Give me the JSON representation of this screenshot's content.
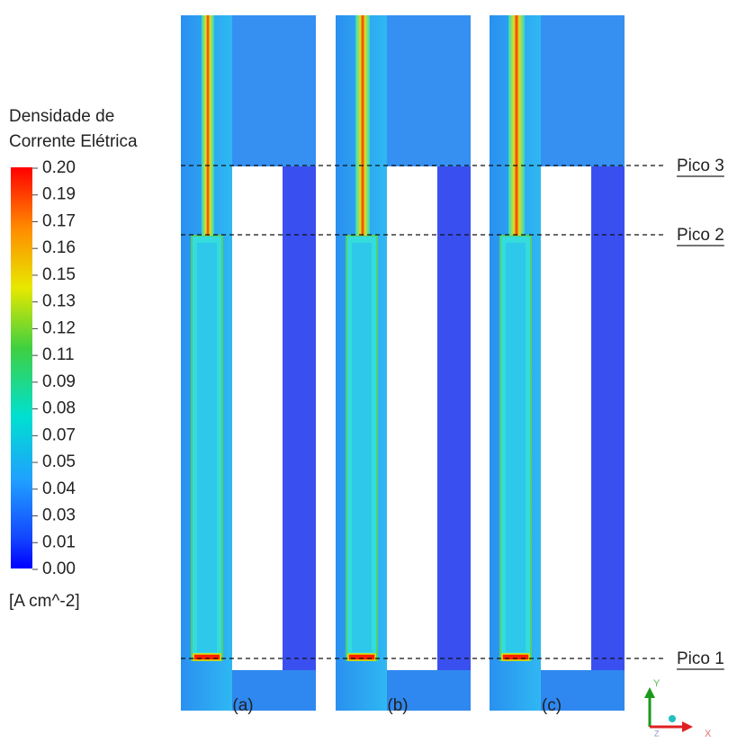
{
  "legend": {
    "title": [
      "Densidade de",
      "Corrente Elétrica"
    ],
    "ticks": [
      "0.20",
      "0.19",
      "0.17",
      "0.16",
      "0.15",
      "0.13",
      "0.12",
      "0.11",
      "0.09",
      "0.08",
      "0.07",
      "0.05",
      "0.04",
      "0.03",
      "0.01",
      "0.00"
    ],
    "unit": "[A cm^-2]"
  },
  "panels": [
    "(a)",
    "(b)",
    "(c)"
  ],
  "lines": [
    "Pico 3",
    "Pico 2",
    "Pico 1"
  ],
  "axes": {
    "y": "Y",
    "x": "X",
    "z": "Z"
  }
}
